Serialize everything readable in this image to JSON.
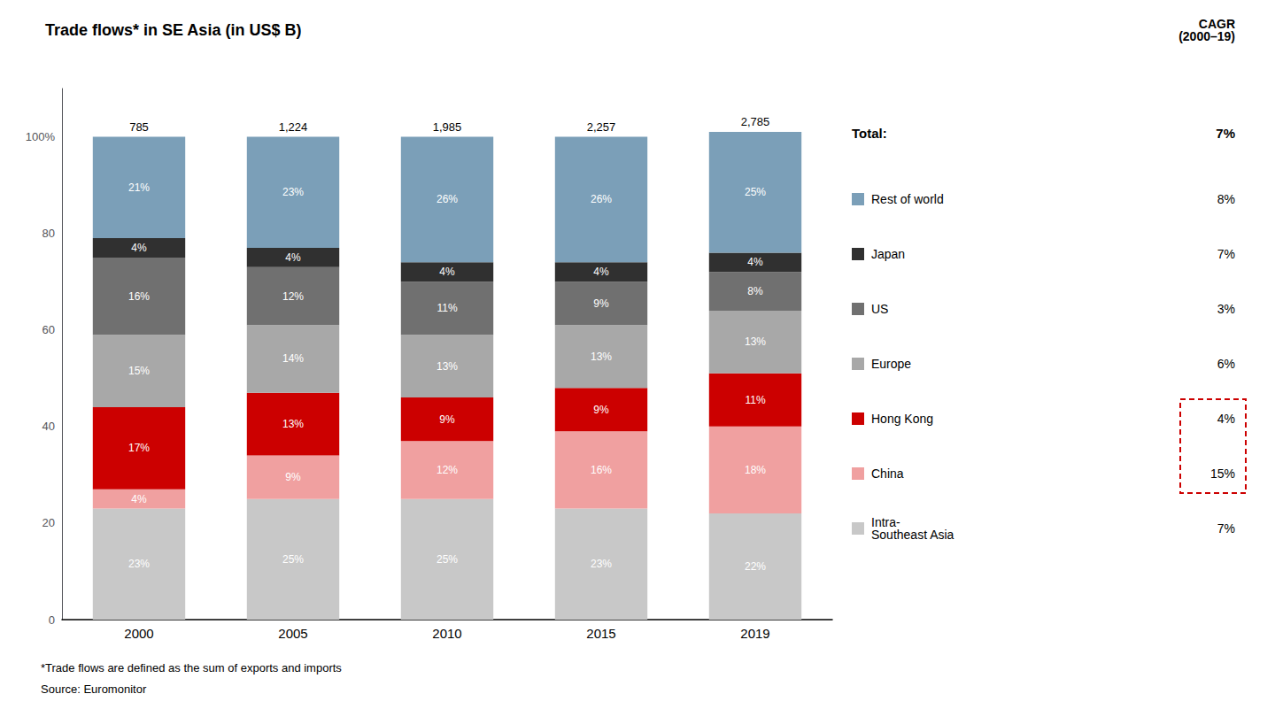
{
  "chart_data": {
    "type": "bar",
    "title": "Trade flows* in SE Asia (in US$ B)",
    "categories": [
      "2000",
      "2005",
      "2010",
      "2015",
      "2019"
    ],
    "series": [
      {
        "name": "Intra-\nSoutheast Asia",
        "color": "#c8c8c8",
        "values": [
          23,
          25,
          25,
          23,
          22
        ],
        "value_labels": [
          "23%",
          "25%",
          "25%",
          "23%",
          "22%"
        ],
        "cagr": "7%"
      },
      {
        "name": "China",
        "color": "#f0a0a0",
        "values": [
          4,
          9,
          12,
          16,
          18
        ],
        "value_labels": [
          "4%",
          "9%",
          "12%",
          "16%",
          "18%"
        ],
        "cagr": "15%"
      },
      {
        "name": "Hong Kong",
        "color": "#cc0000",
        "values": [
          17,
          13,
          9,
          9,
          11
        ],
        "value_labels": [
          "17%",
          "13%",
          "9%",
          "9%",
          "11%"
        ],
        "cagr": "4%"
      },
      {
        "name": "Europe",
        "color": "#a8a8a8",
        "values": [
          15,
          14,
          13,
          13,
          13
        ],
        "value_labels": [
          "15%",
          "14%",
          "13%",
          "13%",
          "13%"
        ],
        "cagr": "6%"
      },
      {
        "name": "US",
        "color": "#707070",
        "values": [
          16,
          12,
          11,
          9,
          8
        ],
        "value_labels": [
          "16%",
          "12%",
          "11%",
          "9%",
          "8%"
        ],
        "cagr": "3%"
      },
      {
        "name": "Japan",
        "color": "#303030",
        "values": [
          4,
          4,
          4,
          4,
          4
        ],
        "value_labels": [
          "4%",
          "4%",
          "4%",
          "4%",
          "4%"
        ],
        "cagr": "7%"
      },
      {
        "name": "Rest of world",
        "color": "#7b9fb8",
        "values": [
          21,
          23,
          26,
          26,
          25
        ],
        "value_labels": [
          "21%",
          "23%",
          "26%",
          "26%",
          "25%"
        ],
        "cagr": "8%"
      }
    ],
    "totals": [
      "785",
      "1,224",
      "1,985",
      "2,257",
      "2,785"
    ],
    "cagr_header": "CAGR\n(2000–19)",
    "total_label": "Total:",
    "total_cagr": "7%",
    "notes": [
      "*Trade flows are defined as the sum of exports and imports",
      "Source: Euromonitor"
    ],
    "ylim": [
      0,
      110
    ],
    "yticks": [
      0,
      20,
      40,
      60,
      80,
      {
        "value": 100,
        "label": "100%"
      }
    ],
    "stacked": true,
    "data_labels": true,
    "grid": false,
    "legend": "right"
  }
}
